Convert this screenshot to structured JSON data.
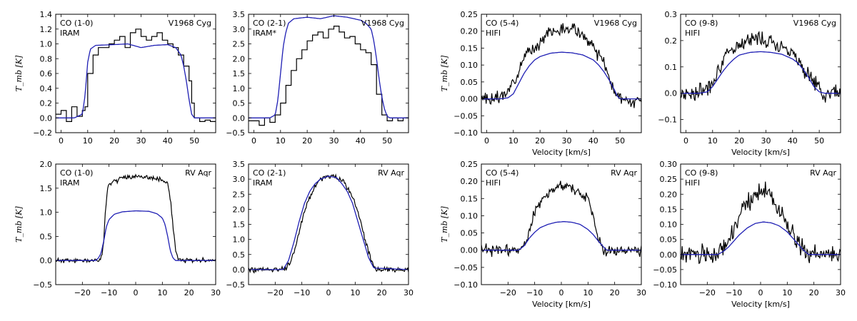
{
  "chart_data": [
    {
      "type": "line",
      "line_label": "CO (1-0)",
      "instrument": "IRAM",
      "star": "V1968 Cyg",
      "xlim": [
        -2,
        58
      ],
      "ylim": [
        -0.2,
        1.4
      ],
      "xticks": [
        0,
        10,
        20,
        30,
        40,
        50
      ],
      "yticks": [
        -0.2,
        0.0,
        0.2,
        0.4,
        0.6,
        0.8,
        1.0,
        1.2,
        1.4
      ],
      "xlabel": "",
      "ylabel": "T_mb [K]",
      "series": [
        {
          "style": "step",
          "color": "#000000",
          "x": [
            -2,
            0,
            2,
            4,
            6,
            8,
            9,
            10,
            12,
            14,
            16,
            18,
            20,
            22,
            24,
            26,
            28,
            30,
            32,
            34,
            36,
            38,
            40,
            42,
            44,
            46,
            48,
            49,
            50,
            52,
            54,
            56,
            58
          ],
          "y": [
            0.05,
            0.1,
            -0.05,
            0.15,
            0.02,
            0.1,
            0.15,
            0.6,
            0.85,
            0.95,
            0.95,
            1.0,
            1.05,
            1.1,
            0.95,
            1.15,
            1.2,
            1.1,
            1.05,
            1.1,
            1.15,
            1.05,
            1.0,
            0.95,
            0.85,
            0.7,
            0.5,
            0.2,
            0.0,
            -0.05,
            -0.03,
            -0.05,
            -0.02
          ]
        },
        {
          "style": "line",
          "color": "#1f1fb4",
          "x": [
            -2,
            5,
            8,
            9,
            10,
            11,
            13,
            20,
            25,
            30,
            35,
            40,
            43,
            45,
            46,
            47,
            48,
            49,
            50,
            51,
            58
          ],
          "y": [
            0.0,
            0.0,
            0.05,
            0.3,
            0.75,
            0.93,
            0.98,
            0.99,
            1.0,
            0.95,
            0.98,
            0.99,
            0.95,
            0.85,
            0.7,
            0.5,
            0.25,
            0.05,
            0.0,
            0.0,
            0.0
          ]
        }
      ]
    },
    {
      "type": "line",
      "line_label": "CO (2-1)",
      "instrument": "IRAM*",
      "star": "V1968 Cyg",
      "xlim": [
        -2,
        58
      ],
      "ylim": [
        -0.5,
        3.5
      ],
      "xticks": [
        0,
        10,
        20,
        30,
        40,
        50
      ],
      "yticks": [
        -0.5,
        0.0,
        0.5,
        1.0,
        1.5,
        2.0,
        2.5,
        3.0,
        3.5
      ],
      "xlabel": "",
      "ylabel": "",
      "series": [
        {
          "style": "step",
          "color": "#000000",
          "x": [
            -2,
            2,
            4,
            6,
            8,
            10,
            12,
            14,
            16,
            18,
            20,
            22,
            24,
            26,
            28,
            30,
            32,
            34,
            36,
            38,
            40,
            42,
            44,
            46,
            48,
            50,
            52,
            54,
            56,
            58
          ],
          "y": [
            -0.1,
            -0.25,
            0.0,
            -0.15,
            0.1,
            0.5,
            1.1,
            1.6,
            2.0,
            2.3,
            2.6,
            2.8,
            2.9,
            2.7,
            3.0,
            3.1,
            2.9,
            2.7,
            2.75,
            2.5,
            2.3,
            2.2,
            1.8,
            0.8,
            0.1,
            -0.1,
            0.0,
            -0.1,
            0.0,
            -0.15
          ]
        },
        {
          "style": "line",
          "color": "#1f1fb4",
          "x": [
            -2,
            6,
            8,
            9,
            10,
            11,
            12,
            13,
            15,
            20,
            25,
            30,
            35,
            40,
            42,
            44,
            45,
            46,
            47,
            48,
            49,
            50,
            51,
            58
          ],
          "y": [
            0.0,
            0.0,
            0.1,
            0.6,
            1.5,
            2.4,
            2.9,
            3.2,
            3.35,
            3.4,
            3.35,
            3.45,
            3.4,
            3.3,
            3.2,
            3.0,
            2.6,
            2.0,
            1.3,
            0.7,
            0.3,
            0.05,
            0.0,
            0.0
          ]
        }
      ]
    },
    {
      "type": "line",
      "line_label": "CO (5-4)",
      "instrument": "HIFI",
      "star": "V1968 Cyg",
      "xlim": [
        -2,
        58
      ],
      "ylim": [
        -0.1,
        0.25
      ],
      "xticks": [
        0,
        10,
        20,
        30,
        40,
        50
      ],
      "yticks": [
        -0.1,
        -0.05,
        0.0,
        0.05,
        0.1,
        0.15,
        0.2,
        0.25
      ],
      "xlabel": "Velocity [km/s]",
      "ylabel": "T_mb [K]",
      "series": [
        {
          "style": "noisy",
          "color": "#000000",
          "noise": 0.018,
          "seed": 3,
          "x": [
            -2,
            0,
            4,
            8,
            10,
            12,
            14,
            16,
            18,
            20,
            22,
            24,
            26,
            28,
            30,
            32,
            34,
            36,
            38,
            40,
            42,
            44,
            46,
            48,
            50,
            52,
            54,
            56,
            58
          ],
          "y": [
            0.0,
            0.0,
            0.0,
            0.02,
            0.05,
            0.09,
            0.12,
            0.14,
            0.15,
            0.17,
            0.19,
            0.2,
            0.2,
            0.2,
            0.21,
            0.21,
            0.2,
            0.19,
            0.17,
            0.15,
            0.13,
            0.1,
            0.06,
            0.02,
            0.0,
            0.0,
            -0.01,
            0.0,
            -0.01
          ]
        },
        {
          "style": "line",
          "color": "#1f1fb4",
          "x": [
            -2,
            5,
            8,
            10,
            12,
            14,
            16,
            18,
            20,
            24,
            28,
            32,
            36,
            40,
            42,
            44,
            46,
            48,
            49,
            50,
            58
          ],
          "y": [
            0.0,
            0.0,
            0.003,
            0.015,
            0.045,
            0.075,
            0.098,
            0.115,
            0.125,
            0.135,
            0.138,
            0.136,
            0.13,
            0.115,
            0.1,
            0.08,
            0.055,
            0.025,
            0.008,
            0.0,
            0.0
          ]
        }
      ]
    },
    {
      "type": "line",
      "line_label": "CO (9-8)",
      "instrument": "HIFI",
      "star": "V1968 Cyg",
      "xlim": [
        -2,
        58
      ],
      "ylim": [
        -0.15,
        0.3
      ],
      "xticks": [
        0,
        10,
        20,
        30,
        40,
        50
      ],
      "yticks": [
        -0.1,
        0.0,
        0.1,
        0.2,
        0.3
      ],
      "xlabel": "Velocity [km/s]",
      "ylabel": "",
      "series": [
        {
          "style": "noisy",
          "color": "#000000",
          "noise": 0.03,
          "seed": 7,
          "x": [
            -2,
            4,
            8,
            10,
            12,
            14,
            16,
            18,
            20,
            22,
            24,
            26,
            28,
            30,
            32,
            34,
            36,
            38,
            40,
            42,
            44,
            46,
            48,
            50,
            52,
            54,
            56,
            58
          ],
          "y": [
            0.0,
            0.0,
            0.02,
            0.05,
            0.09,
            0.12,
            0.15,
            0.17,
            0.19,
            0.2,
            0.2,
            0.21,
            0.21,
            0.2,
            0.2,
            0.19,
            0.18,
            0.17,
            0.15,
            0.13,
            0.1,
            0.07,
            0.04,
            0.02,
            0.0,
            0.0,
            0.0,
            0.0
          ]
        },
        {
          "style": "line",
          "color": "#1f1fb4",
          "x": [
            -2,
            5,
            8,
            10,
            12,
            14,
            16,
            18,
            20,
            24,
            28,
            32,
            36,
            40,
            42,
            44,
            46,
            48,
            50,
            52,
            58
          ],
          "y": [
            0.0,
            0.0,
            0.005,
            0.025,
            0.055,
            0.085,
            0.11,
            0.13,
            0.145,
            0.155,
            0.158,
            0.155,
            0.148,
            0.13,
            0.115,
            0.09,
            0.06,
            0.025,
            0.005,
            0.0,
            0.0
          ]
        }
      ]
    },
    {
      "type": "line",
      "line_label": "CO (1-0)",
      "instrument": "IRAM",
      "star": "RV Aqr",
      "xlim": [
        -30,
        30
      ],
      "ylim": [
        -0.5,
        2.0
      ],
      "xticks": [
        -20,
        -10,
        0,
        10,
        20,
        30
      ],
      "yticks": [
        -0.5,
        0.0,
        0.5,
        1.0,
        1.5,
        2.0
      ],
      "xlabel": "",
      "ylabel": "T_mb [K]",
      "series": [
        {
          "style": "noisy",
          "color": "#000000",
          "noise": 0.05,
          "seed": 11,
          "x": [
            -30,
            -20,
            -15,
            -13,
            -12,
            -11,
            -10,
            -5,
            0,
            5,
            10,
            12,
            13,
            14,
            15,
            16,
            18,
            20,
            30
          ],
          "y": [
            0.0,
            0.0,
            0.0,
            0.03,
            0.4,
            1.3,
            1.6,
            1.72,
            1.75,
            1.72,
            1.65,
            1.6,
            1.3,
            0.7,
            0.2,
            0.05,
            0.0,
            0.0,
            0.0
          ]
        },
        {
          "style": "line",
          "color": "#1f1fb4",
          "x": [
            -30,
            -15,
            -14,
            -13,
            -12,
            -11,
            -10,
            -8,
            -5,
            0,
            5,
            8,
            10,
            11,
            12,
            13,
            14,
            15,
            30
          ],
          "y": [
            0.0,
            0.0,
            0.05,
            0.15,
            0.4,
            0.7,
            0.85,
            0.96,
            1.01,
            1.03,
            1.02,
            0.97,
            0.88,
            0.75,
            0.5,
            0.2,
            0.05,
            0.0,
            0.0
          ]
        }
      ]
    },
    {
      "type": "line",
      "line_label": "CO (2-1)",
      "instrument": "IRAM",
      "star": "RV Aqr",
      "xlim": [
        -30,
        30
      ],
      "ylim": [
        -0.5,
        3.5
      ],
      "xticks": [
        -20,
        -10,
        0,
        10,
        20,
        30
      ],
      "yticks": [
        -0.5,
        0.0,
        0.5,
        1.0,
        1.5,
        2.0,
        2.5,
        3.0,
        3.5
      ],
      "xlabel": "",
      "ylabel": "",
      "series": [
        {
          "style": "noisy",
          "color": "#000000",
          "noise": 0.09,
          "seed": 19,
          "x": [
            -30,
            -20,
            -16,
            -14,
            -12,
            -10,
            -8,
            -6,
            -4,
            -2,
            0,
            2,
            4,
            6,
            8,
            10,
            12,
            14,
            16,
            18,
            20,
            30
          ],
          "y": [
            0.0,
            0.0,
            0.05,
            0.3,
            0.9,
            1.6,
            2.2,
            2.6,
            2.9,
            3.05,
            3.1,
            3.1,
            3.0,
            2.9,
            2.6,
            2.2,
            1.6,
            0.9,
            0.3,
            0.0,
            0.0,
            0.0
          ]
        },
        {
          "style": "line",
          "color": "#1f1fb4",
          "x": [
            -30,
            -17,
            -15,
            -13,
            -11,
            -9,
            -7,
            -5,
            -3,
            0,
            3,
            5,
            7,
            9,
            11,
            13,
            15,
            17,
            30
          ],
          "y": [
            0.0,
            0.0,
            0.3,
            0.9,
            1.6,
            2.2,
            2.6,
            2.85,
            3.0,
            3.1,
            3.05,
            2.85,
            2.6,
            2.2,
            1.6,
            1.0,
            0.4,
            0.05,
            0.0
          ]
        }
      ]
    },
    {
      "type": "line",
      "line_label": "CO (5-4)",
      "instrument": "HIFI",
      "star": "RV Aqr",
      "xlim": [
        -30,
        30
      ],
      "ylim": [
        -0.1,
        0.25
      ],
      "xticks": [
        -20,
        -10,
        0,
        10,
        20,
        30
      ],
      "yticks": [
        -0.1,
        -0.05,
        0.0,
        0.05,
        0.1,
        0.15,
        0.2,
        0.25
      ],
      "xlabel": "Velocity [km/s]",
      "ylabel": "T_mb [K]",
      "series": [
        {
          "style": "noisy",
          "color": "#000000",
          "noise": 0.016,
          "seed": 23,
          "x": [
            -30,
            -20,
            -16,
            -14,
            -12,
            -10,
            -8,
            -6,
            -4,
            -2,
            0,
            2,
            4,
            6,
            8,
            10,
            12,
            14,
            16,
            18,
            20,
            30
          ],
          "y": [
            0.0,
            0.0,
            0.0,
            0.02,
            0.06,
            0.11,
            0.14,
            0.15,
            0.17,
            0.18,
            0.19,
            0.19,
            0.18,
            0.17,
            0.16,
            0.15,
            0.1,
            0.03,
            0.0,
            0.0,
            0.0,
            0.0
          ]
        },
        {
          "style": "line",
          "color": "#1f1fb4",
          "x": [
            -30,
            -19,
            -16,
            -14,
            -12,
            -10,
            -8,
            -5,
            -2,
            1,
            4,
            7,
            10,
            12,
            14,
            16,
            17,
            18,
            30
          ],
          "y": [
            0.0,
            0.0,
            0.0,
            0.012,
            0.035,
            0.052,
            0.065,
            0.075,
            0.081,
            0.083,
            0.081,
            0.075,
            0.06,
            0.045,
            0.025,
            0.008,
            0.0,
            0.0,
            0.0
          ]
        }
      ]
    },
    {
      "type": "line",
      "line_label": "CO (9-8)",
      "instrument": "HIFI",
      "star": "RV Aqr",
      "xlim": [
        -30,
        30
      ],
      "ylim": [
        -0.1,
        0.3
      ],
      "xticks": [
        -20,
        -10,
        0,
        10,
        20,
        30
      ],
      "yticks": [
        -0.1,
        -0.05,
        0.0,
        0.05,
        0.1,
        0.15,
        0.2,
        0.25,
        0.3
      ],
      "xlabel": "Velocity [km/s]",
      "ylabel": "",
      "series": [
        {
          "style": "noisy",
          "color": "#000000",
          "noise": 0.03,
          "seed": 31,
          "x": [
            -30,
            -20,
            -16,
            -14,
            -12,
            -10,
            -8,
            -6,
            -4,
            -2,
            0,
            2,
            4,
            6,
            8,
            10,
            12,
            14,
            16,
            18,
            20,
            30
          ],
          "y": [
            0.0,
            0.0,
            0.0,
            0.02,
            0.05,
            0.09,
            0.13,
            0.16,
            0.18,
            0.2,
            0.21,
            0.21,
            0.19,
            0.16,
            0.13,
            0.1,
            0.06,
            0.03,
            0.01,
            0.0,
            0.0,
            0.0
          ]
        },
        {
          "style": "line",
          "color": "#1f1fb4",
          "x": [
            -30,
            -20,
            -16,
            -14,
            -12,
            -10,
            -8,
            -5,
            -2,
            1,
            4,
            7,
            10,
            12,
            14,
            16,
            18,
            20,
            30
          ],
          "y": [
            0.0,
            0.0,
            0.0,
            0.01,
            0.025,
            0.045,
            0.065,
            0.088,
            0.103,
            0.108,
            0.105,
            0.095,
            0.075,
            0.055,
            0.035,
            0.015,
            0.0,
            0.0,
            0.0
          ]
        }
      ]
    }
  ]
}
